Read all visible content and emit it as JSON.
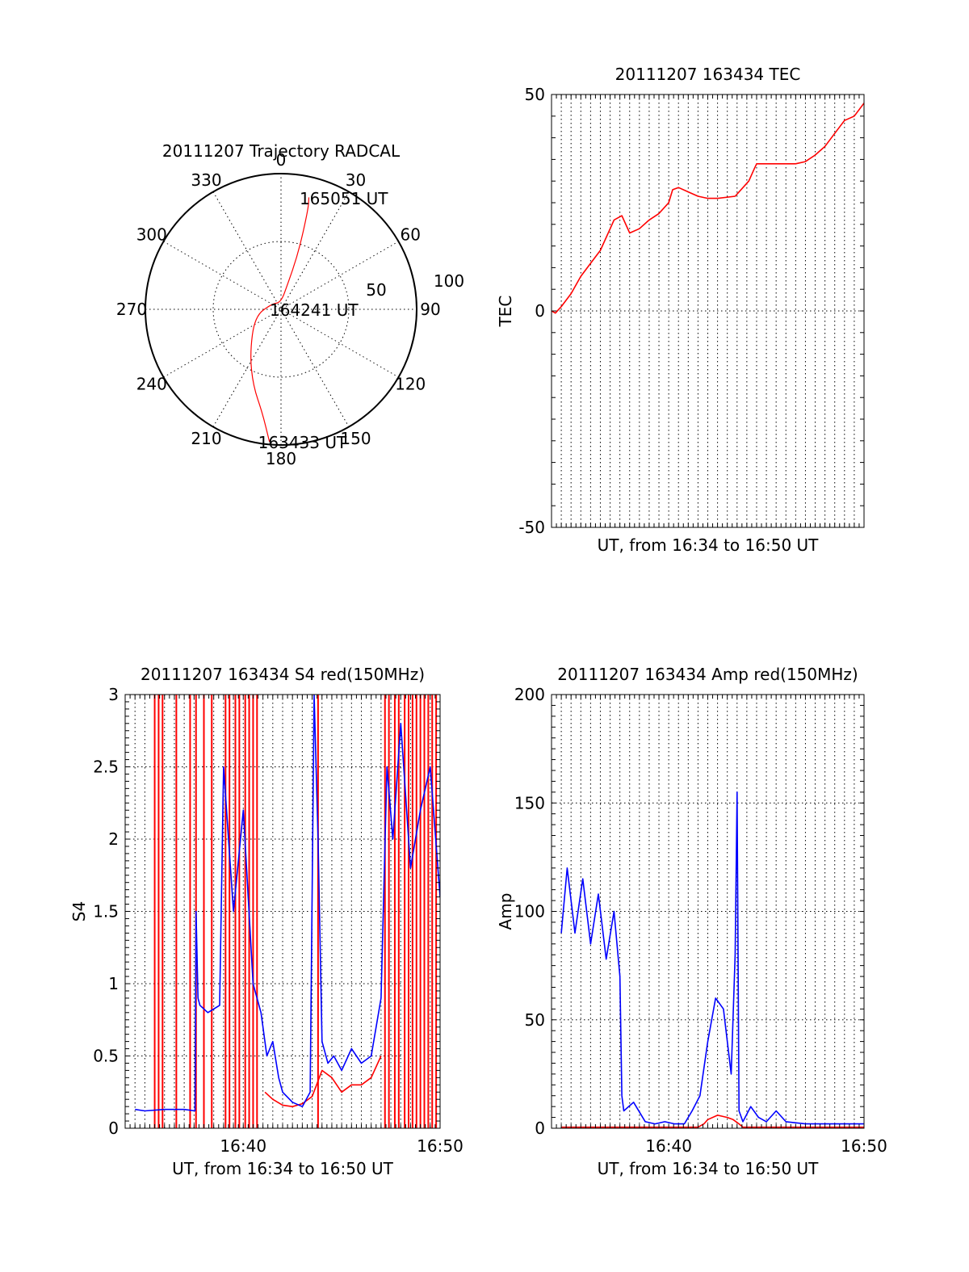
{
  "chart_data": [
    {
      "id": "polar",
      "type": "polar-trajectory",
      "title": "20111207 Trajectory RADCAL",
      "azimuth_labels": [
        "0",
        "30",
        "60",
        "90",
        "120",
        "150",
        "180",
        "210",
        "240",
        "270",
        "300",
        "330"
      ],
      "radius_labels": [
        "50",
        "100"
      ],
      "r_max": 100,
      "trajectory": {
        "color": "#ff0000",
        "points": [
          [
            185,
            98
          ],
          [
            190,
            78
          ],
          [
            200,
            60
          ],
          [
            215,
            40
          ],
          [
            255,
            20
          ],
          [
            300,
            8
          ],
          [
            0,
            5
          ],
          [
            15,
            20
          ],
          [
            17,
            40
          ],
          [
            16,
            60
          ],
          [
            15,
            78
          ],
          [
            14,
            85
          ]
        ],
        "labels": [
          {
            "text": "165051 UT",
            "az": 15,
            "el": 85
          },
          {
            "text": "164241 UT",
            "az": 0,
            "el": 0
          },
          {
            "text": "163433 UT",
            "az": 185,
            "el": 98
          }
        ]
      }
    },
    {
      "id": "tec",
      "type": "line",
      "title": "20111207 163434 TEC",
      "xlabel": "UT, from 16:34 to 16:50 UT",
      "ylabel": "TEC",
      "xlim": [
        0,
        16
      ],
      "ylim": [
        -50,
        50
      ],
      "yticks": [
        -50,
        0,
        50
      ],
      "ytick_labels": [
        "-50",
        "0",
        "50"
      ],
      "xticks": [],
      "x_grid_step": 0.5,
      "series": [
        {
          "name": "TEC",
          "color": "#ff0000",
          "x": [
            0.0,
            0.2,
            0.5,
            1.0,
            1.5,
            2.0,
            2.5,
            3.0,
            3.2,
            3.6,
            4.0,
            4.5,
            5.0,
            5.5,
            6.0,
            6.2,
            6.5,
            7.0,
            7.5,
            8.0,
            8.5,
            9.4,
            10.1,
            10.4,
            10.5,
            11.0,
            11.5,
            12.0,
            12.5,
            13.0,
            13.5,
            14.0,
            14.5,
            15.0,
            15.5,
            16.0
          ],
          "y": [
            0.0,
            -0.5,
            1.0,
            4.0,
            8.0,
            11.0,
            14.0,
            19.0,
            21.0,
            22.0,
            18.0,
            19.0,
            21.0,
            22.5,
            25.0,
            28.0,
            28.5,
            27.5,
            26.5,
            26.0,
            26.0,
            26.5,
            30.0,
            33.0,
            34.0,
            34.0,
            34.0,
            34.0,
            34.0,
            34.5,
            36.0,
            38.0,
            41.0,
            44.0,
            45.0,
            48.0
          ]
        }
      ]
    },
    {
      "id": "s4",
      "type": "line",
      "title": "20111207 163434 S4 red(150MHz)",
      "xlabel": "UT, from 16:34 to 16:50 UT",
      "ylabel": "S4",
      "xlim": [
        0,
        16
      ],
      "ylim": [
        0,
        3
      ],
      "yticks": [
        0,
        0.5,
        1,
        1.5,
        2,
        2.5,
        3
      ],
      "ytick_labels": [
        "0",
        "0.5",
        "1",
        "1.5",
        "2",
        "2.5",
        "3"
      ],
      "xticks": [
        6,
        16
      ],
      "xtick_labels": [
        "16:40",
        "16:50"
      ],
      "x_grid_step": 0.5,
      "red_spike_x": [
        1.5,
        1.7,
        1.9,
        2.6,
        3.3,
        3.6,
        4.0,
        4.4,
        5.1,
        5.3,
        5.6,
        5.8,
        6.1,
        6.3,
        6.5,
        6.7,
        9.8,
        13.2,
        13.4,
        13.7,
        13.9,
        14.2,
        14.4,
        14.6,
        14.8,
        15.0,
        15.2,
        15.4,
        15.6,
        15.8
      ],
      "series": [
        {
          "name": "red",
          "color": "#ff0000",
          "x": [
            7.1,
            7.5,
            8.0,
            8.5,
            9.0,
            9.5,
            10.0,
            10.5,
            11.0,
            11.5,
            12.0,
            12.5,
            13.0
          ],
          "y": [
            0.25,
            0.2,
            0.16,
            0.15,
            0.17,
            0.22,
            0.4,
            0.35,
            0.25,
            0.3,
            0.3,
            0.35,
            0.5
          ]
        },
        {
          "name": "blue",
          "color": "#0000ff",
          "x": [
            0.5,
            1.0,
            2.0,
            3.0,
            3.55,
            3.6,
            3.7,
            3.8,
            4.2,
            4.8,
            5.0,
            5.5,
            6.0,
            6.5,
            6.9,
            7.2,
            7.5,
            7.8,
            8.0,
            8.5,
            9.0,
            9.4,
            9.6,
            9.8,
            10.0,
            10.3,
            10.6,
            11.0,
            11.5,
            12.0,
            12.5,
            13.0,
            13.3,
            13.6,
            14.0,
            14.5,
            15.0,
            15.5,
            16.0
          ],
          "y": [
            0.13,
            0.12,
            0.13,
            0.13,
            0.12,
            1.5,
            0.9,
            0.85,
            0.8,
            0.85,
            2.5,
            1.5,
            2.2,
            1.0,
            0.8,
            0.5,
            0.6,
            0.35,
            0.25,
            0.18,
            0.15,
            0.25,
            3.0,
            2.0,
            0.6,
            0.45,
            0.5,
            0.4,
            0.55,
            0.45,
            0.5,
            0.9,
            2.5,
            2.0,
            2.8,
            1.8,
            2.2,
            2.5,
            1.6
          ]
        }
      ]
    },
    {
      "id": "amp",
      "type": "line",
      "title": "20111207 163434 Amp red(150MHz)",
      "xlabel": "UT, from 16:34 to 16:50 UT",
      "ylabel": "Amp",
      "xlim": [
        0,
        16
      ],
      "ylim": [
        0,
        200
      ],
      "yticks": [
        0,
        50,
        100,
        150,
        200
      ],
      "ytick_labels": [
        "0",
        "50",
        "100",
        "150",
        "200"
      ],
      "xticks": [
        6,
        16
      ],
      "xtick_labels": [
        "16:40",
        "16:50"
      ],
      "x_grid_step": 0.5,
      "series": [
        {
          "name": "blue",
          "color": "#0000ff",
          "x": [
            0.5,
            0.8,
            1.2,
            1.6,
            2.0,
            2.4,
            2.8,
            3.2,
            3.5,
            3.6,
            3.7,
            4.2,
            4.8,
            5.3,
            5.8,
            6.3,
            6.8,
            7.2,
            7.6,
            8.0,
            8.4,
            8.8,
            9.2,
            9.4,
            9.5,
            9.6,
            9.8,
            10.2,
            10.6,
            11.0,
            11.5,
            12.0,
            13.0,
            14.0,
            15.0,
            16.0
          ],
          "y": [
            90,
            120,
            90,
            115,
            85,
            108,
            78,
            100,
            70,
            15,
            8,
            12,
            3,
            2,
            3,
            2,
            2,
            8,
            15,
            40,
            60,
            55,
            25,
            80,
            155,
            8,
            3,
            10,
            5,
            3,
            8,
            3,
            2,
            2,
            2,
            2
          ]
        },
        {
          "name": "red",
          "color": "#ff0000",
          "x": [
            0.5,
            7.5,
            7.8,
            8.0,
            8.5,
            9.0,
            9.3,
            9.6,
            9.8,
            16.0
          ],
          "y": [
            0.5,
            0.5,
            2,
            4,
            6,
            5,
            4,
            2,
            0.5,
            0.5
          ]
        }
      ]
    }
  ]
}
